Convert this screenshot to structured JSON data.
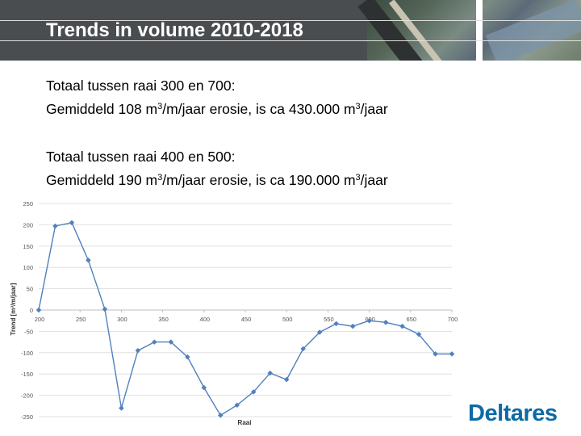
{
  "header": {
    "title": "Trends in volume 2010-2018"
  },
  "text": {
    "block1_line1": "Totaal tussen raai 300 en 700:",
    "block1_line2_pre": "Gemiddeld 108 m",
    "block1_line2_sup": "3",
    "block1_line2_mid": "/m/jaar erosie, is ca 430.000 m",
    "block1_line2_sup2": "3",
    "block1_line2_post": "/jaar",
    "block2_line1": "Totaal tussen raai 400 en 500:",
    "block2_line2_pre": "Gemiddeld 190 m",
    "block2_line2_sup": "3",
    "block2_line2_mid": "/m/jaar erosie, is ca 190.000 m",
    "block2_line2_sup2": "3",
    "block2_line2_post": "/jaar"
  },
  "logo": {
    "text": "Deltares"
  },
  "colors": {
    "accent": "#4f81bd",
    "logo": "#0d6aa6",
    "header_bg": "#4a4d50"
  },
  "chart_data": {
    "type": "line",
    "xlabel": "Raai",
    "ylabel": "Trend [m³/m/jaar]",
    "xlim": [
      200,
      700
    ],
    "ylim": [
      -250,
      250
    ],
    "xticks": [
      "200",
      "250",
      "300",
      "350",
      "400",
      "450",
      "500",
      "550",
      "600",
      "650",
      "700"
    ],
    "yticks": [
      "250",
      "200",
      "150",
      "100",
      "50",
      "0",
      "-50",
      "-100",
      "-150",
      "-200",
      "-250"
    ],
    "grid": "horizontal",
    "series": [
      {
        "x": [
          200,
          220,
          240,
          260,
          280,
          300,
          320,
          340,
          360,
          380,
          400,
          420,
          440,
          460,
          480,
          500,
          520,
          540,
          560,
          580,
          600,
          620,
          640,
          660,
          680,
          700
        ],
        "y": [
          0,
          197,
          205,
          117,
          2,
          -230,
          -95,
          -75,
          -75,
          -110,
          -182,
          -247,
          -223,
          -192,
          -148,
          -163,
          -91,
          -52,
          -32,
          -38,
          -25,
          -29,
          -38,
          -57,
          -103,
          -103
        ]
      }
    ]
  }
}
